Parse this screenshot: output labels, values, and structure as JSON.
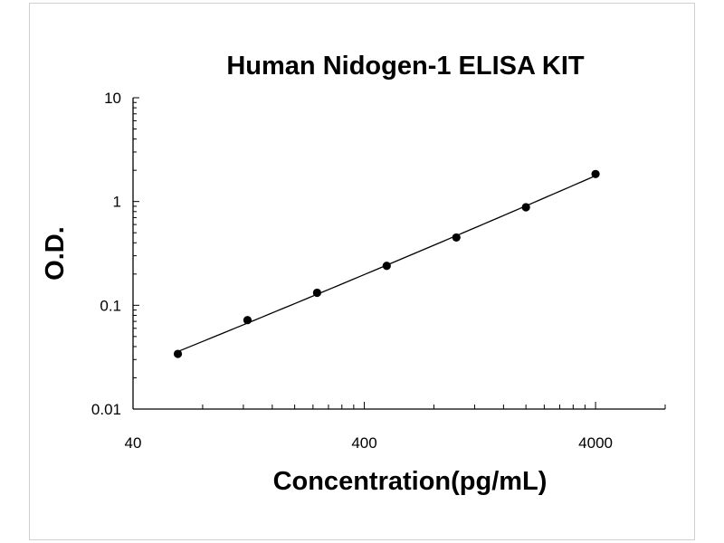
{
  "chart_data": {
    "type": "scatter",
    "title": "Human Nidogen-1 ELISA KIT",
    "xlabel": "Concentration(pg/mL)",
    "ylabel": "O.D.",
    "x_scale": "log",
    "y_scale": "log",
    "xlim": [
      40,
      8000
    ],
    "ylim": [
      0.01,
      10
    ],
    "x_ticks": [
      "40",
      "400",
      "4000"
    ],
    "y_ticks": [
      "0.01",
      "0.1",
      "1",
      "10"
    ],
    "grid": false,
    "series": [
      {
        "x": [
          62.5,
          125,
          250,
          500,
          1000,
          2000,
          4000
        ],
        "y": [
          0.034,
          0.072,
          0.132,
          0.24,
          0.45,
          0.88,
          1.84
        ]
      }
    ],
    "fit_curve": true
  }
}
